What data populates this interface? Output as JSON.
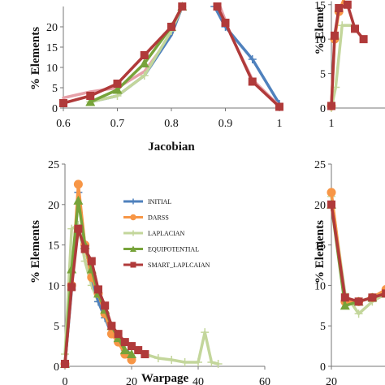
{
  "colors": {
    "INITIAL": "#4f81bd",
    "DARSS": "#f79646",
    "LAPLACIAN": "#c3d69b",
    "EQUIPOTENTIAL": "#77a33a",
    "SMART_LAPLCAIAN": "#b03a3a",
    "PINK": "#e6a0a8"
  },
  "chart_data": [
    {
      "id": "jacobian",
      "type": "line",
      "xlabel": "Jacobian",
      "ylabel": "% Elements",
      "xlim": [
        0.6,
        1.0
      ],
      "ylim": [
        0,
        25
      ],
      "xticks": [
        "0.6",
        "0.7",
        "0.8",
        "0.9",
        "1"
      ],
      "yticks": [
        "0",
        "5",
        "10",
        "15",
        "20"
      ],
      "series": [
        {
          "key": "PINK",
          "marker": "none",
          "x": [
            0.6,
            0.65,
            0.7,
            0.75,
            0.8,
            0.82
          ],
          "y": [
            2.5,
            4,
            5,
            9,
            18,
            25
          ]
        },
        {
          "key": "INITIAL",
          "marker": "none",
          "x": [
            0.65,
            0.7,
            0.75,
            0.8,
            0.82
          ],
          "y": [
            1.5,
            3,
            8,
            18,
            25
          ]
        },
        {
          "key": "LAPLACIAN",
          "marker": "plus",
          "x": [
            0.65,
            0.7,
            0.75,
            0.8,
            0.82
          ],
          "y": [
            1.5,
            3,
            8,
            19,
            25
          ]
        },
        {
          "key": "EQUIPOTENTIAL",
          "marker": "triangle",
          "x": [
            0.65,
            0.7,
            0.75,
            0.8,
            0.82
          ],
          "y": [
            1.5,
            4.5,
            11,
            20,
            25
          ]
        },
        {
          "key": "SMART_LAPLCAIAN",
          "marker": "square",
          "x": [
            0.6,
            0.65,
            0.7,
            0.75,
            0.8,
            0.82
          ],
          "y": [
            1.2,
            3,
            6,
            13,
            20,
            25
          ]
        },
        {
          "key": "INITIAL",
          "marker": "plus",
          "x": [
            0.88,
            0.9,
            0.95,
            1.0
          ],
          "y": [
            25,
            20,
            12,
            1
          ]
        },
        {
          "key": "PINK",
          "marker": "none",
          "x": [
            0.89,
            0.91,
            0.95,
            1.0
          ],
          "y": [
            25,
            18,
            7,
            0.5
          ]
        },
        {
          "key": "SMART_LAPLCAIAN",
          "marker": "square",
          "x": [
            0.885,
            0.9,
            0.95,
            1.0
          ],
          "y": [
            25,
            21,
            6.5,
            0.3
          ]
        }
      ]
    },
    {
      "id": "top-right",
      "type": "line",
      "xlim": [
        1,
        1.5
      ],
      "ylim": [
        0,
        15.5
      ],
      "xticks": [
        "1"
      ],
      "yticks": [
        "0",
        "5",
        "10",
        "15"
      ],
      "ylabel": "% Eleme",
      "series": [
        {
          "key": "LAPLACIAN",
          "marker": "plus",
          "x": [
            1,
            1.04,
            1.1,
            1.2
          ],
          "y": [
            0,
            3,
            12,
            12
          ]
        },
        {
          "key": "DARSS",
          "marker": "circle",
          "x": [
            1,
            1.03,
            1.07,
            1.15
          ],
          "y": [
            0.3,
            10,
            14,
            17
          ]
        },
        {
          "key": "SMART_LAPLCAIAN",
          "marker": "square",
          "x": [
            1,
            1.03,
            1.07,
            1.15,
            1.22,
            1.3
          ],
          "y": [
            0.3,
            10.5,
            14.5,
            15,
            11.5,
            10
          ]
        }
      ]
    },
    {
      "id": "warpage",
      "type": "line",
      "xlabel": "Warpage",
      "ylabel": "% Elements",
      "xlim": [
        0,
        60
      ],
      "ylim": [
        0,
        25
      ],
      "xticks": [
        "0",
        "20",
        "40",
        "60"
      ],
      "yticks": [
        "0",
        "5",
        "10",
        "15",
        "20",
        "25"
      ],
      "legend": {
        "position": "center",
        "entries": [
          {
            "key": "INITIAL",
            "label": "INITIAL"
          },
          {
            "key": "DARSS",
            "label": "DARSS"
          },
          {
            "key": "LAPLACIAN",
            "label": "LAPLACIAN"
          },
          {
            "key": "EQUIPOTENTIAL",
            "label": "EQUIPOTENTIAL"
          },
          {
            "key": "SMART_LAPLCAIAN",
            "label": "SMART_LAPLCAIAN"
          }
        ]
      },
      "series": [
        {
          "key": "LAPLACIAN",
          "marker": "plus",
          "x": [
            0,
            2,
            4,
            6,
            8,
            10,
            12,
            14,
            16,
            18,
            20,
            22,
            24,
            28,
            32,
            36,
            40,
            42,
            44,
            46
          ],
          "y": [
            1.5,
            17,
            17.5,
            13,
            10,
            8,
            6,
            5,
            4,
            3,
            2.5,
            2,
            1.5,
            1,
            0.8,
            0.5,
            0.5,
            4.2,
            0.5,
            0.3
          ]
        },
        {
          "key": "INITIAL",
          "marker": "plus",
          "x": [
            0,
            2,
            4,
            6,
            8,
            10,
            12,
            14,
            16,
            18,
            20
          ],
          "y": [
            0.3,
            9.5,
            21.5,
            15,
            11,
            8,
            6,
            4,
            3,
            2,
            1
          ]
        },
        {
          "key": "DARSS",
          "marker": "circle",
          "x": [
            0,
            2,
            4,
            6,
            8,
            10,
            12,
            14,
            16,
            18,
            20
          ],
          "y": [
            0.3,
            10,
            22.5,
            15,
            11,
            9,
            6.5,
            4,
            3,
            1.5,
            0.8
          ]
        },
        {
          "key": "EQUIPOTENTIAL",
          "marker": "triangle",
          "x": [
            0,
            2,
            4,
            6,
            8,
            10,
            12,
            14,
            16,
            18,
            20
          ],
          "y": [
            0.3,
            12,
            20.5,
            15,
            12,
            9,
            7,
            5,
            3.5,
            2,
            1.5
          ]
        },
        {
          "key": "SMART_LAPLCAIAN",
          "marker": "square",
          "x": [
            0,
            2,
            4,
            6,
            8,
            10,
            12,
            14,
            16,
            18,
            20,
            22,
            24
          ],
          "y": [
            0.3,
            9.8,
            17,
            14.5,
            13,
            9.5,
            7.5,
            5,
            4,
            3,
            2.5,
            2,
            1.5
          ]
        }
      ]
    },
    {
      "id": "bottom-right",
      "type": "line",
      "ylabel": "% Elements",
      "xlim": [
        20,
        35
      ],
      "ylim": [
        0,
        25
      ],
      "xticks": [
        "20"
      ],
      "yticks": [
        "0",
        "5",
        "10",
        "15",
        "20",
        "25"
      ],
      "series": [
        {
          "key": "LAPLACIAN",
          "marker": "plus",
          "x": [
            20,
            22,
            24,
            26,
            28,
            30,
            32,
            34
          ],
          "y": [
            21,
            9,
            6.5,
            8,
            9,
            10,
            11,
            11.5
          ]
        },
        {
          "key": "DARSS",
          "marker": "circle",
          "x": [
            20,
            22,
            24,
            26,
            28,
            30,
            32,
            34
          ],
          "y": [
            21.5,
            8,
            8,
            8.5,
            9.5,
            9.5,
            10,
            10.5
          ]
        },
        {
          "key": "EQUIPOTENTIAL",
          "marker": "triangle",
          "x": [
            20,
            22,
            24,
            26,
            28,
            30,
            32,
            34
          ],
          "y": [
            20,
            7.5,
            8,
            8.5,
            9,
            9.5,
            10,
            10.5
          ]
        },
        {
          "key": "SMART_LAPLCAIAN",
          "marker": "square",
          "x": [
            20,
            22,
            24,
            26,
            28,
            30,
            32,
            34
          ],
          "y": [
            20,
            8.5,
            8,
            8.5,
            9,
            9.5,
            10,
            10.5
          ]
        }
      ]
    }
  ]
}
